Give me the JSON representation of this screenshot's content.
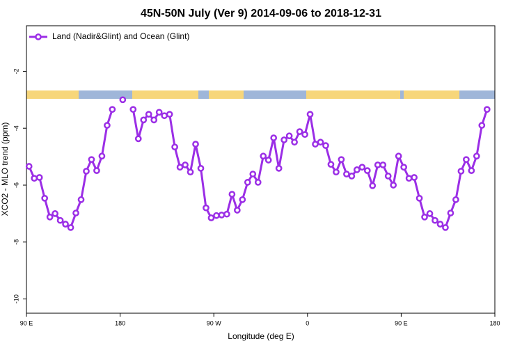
{
  "chart_data": {
    "type": "line",
    "title": "45N-50N July (Ver 9)   2014-09-06 to 2018-12-31",
    "x_label": "Longitude (deg E)",
    "y_label": "XCO2 - MLO trend (ppm)",
    "xlim": [
      90,
      540
    ],
    "xticks": [
      {
        "value": 90,
        "label": "90 E"
      },
      {
        "value": 180,
        "label": "180"
      },
      {
        "value": 270,
        "label": "90 W"
      },
      {
        "value": 360,
        "label": "0"
      },
      {
        "value": 450,
        "label": "90 E"
      },
      {
        "value": 540,
        "label": "180"
      }
    ],
    "ylim": [
      -10.5,
      -0.4
    ],
    "yticks": [
      -2,
      -4,
      -6,
      -8,
      -10
    ],
    "legend": "top-left",
    "x": [
      92.5,
      97.5,
      102.5,
      107.5,
      112.5,
      117.5,
      122.5,
      127.5,
      132.5,
      137.5,
      142.5,
      147.5,
      152.5,
      157.5,
      162.5,
      167.5,
      172.5,
      177.5,
      182.5,
      187.5,
      192.5,
      197.5,
      202.5,
      207.5,
      212.5,
      217.5,
      222.5,
      227.5,
      232.5,
      237.5,
      242.5,
      247.5,
      252.5,
      257.5,
      262.5,
      267.5,
      272.5,
      277.5,
      282.5,
      287.5,
      292.5,
      297.5,
      302.5,
      307.5,
      312.5,
      317.5,
      322.5,
      327.5,
      332.5,
      337.5,
      342.5,
      347.5,
      352.5,
      357.5,
      362.5,
      367.5,
      372.5,
      377.5,
      382.5,
      387.5,
      392.5,
      397.5,
      402.5,
      407.5,
      412.5,
      417.5,
      422.5,
      427.5,
      432.5,
      437.5,
      442.5,
      447.5,
      452.5,
      457.5,
      462.5,
      467.5,
      472.5,
      477.5,
      482.5,
      487.5,
      492.5,
      497.5,
      502.5,
      507.5,
      512.5,
      517.5,
      522.5,
      527.5,
      532.5
    ],
    "series": [
      {
        "name": "Land (Nadir&Glint) and Ocean (Glint)",
        "color": "#9b2ee6",
        "values": [
          -5.34,
          -5.76,
          -5.73,
          -6.46,
          -7.12,
          -7.0,
          -7.24,
          -7.37,
          -7.49,
          -6.98,
          -6.51,
          -5.51,
          -5.1,
          -5.49,
          -4.98,
          -3.9,
          -3.34,
          null,
          -3.0,
          null,
          -3.34,
          -4.37,
          -3.71,
          -3.51,
          -3.71,
          -3.44,
          -3.56,
          -3.51,
          -4.66,
          -5.37,
          -5.29,
          -5.54,
          -4.56,
          -5.41,
          -6.8,
          -7.15,
          -7.07,
          -7.05,
          -7.02,
          -6.32,
          -6.88,
          -6.51,
          -5.9,
          -5.61,
          -5.9,
          -4.98,
          -5.12,
          -4.34,
          -5.41,
          -4.41,
          -4.27,
          -4.49,
          -4.12,
          -4.22,
          -3.51,
          -4.56,
          -4.49,
          -4.61,
          -5.27,
          -5.54,
          -5.1,
          -5.61,
          -5.68,
          -5.46,
          -5.37,
          -5.49,
          -6.02,
          -5.29,
          -5.29,
          -5.68,
          -6.0,
          -4.98,
          -5.37,
          -5.76,
          -5.73,
          -6.46,
          -7.12,
          -7.0,
          -7.24,
          -7.37,
          -7.49,
          -6.98,
          -6.51,
          -5.51,
          -5.1,
          -5.49,
          -4.98,
          -3.9,
          -3.34
        ]
      }
    ]
  }
}
